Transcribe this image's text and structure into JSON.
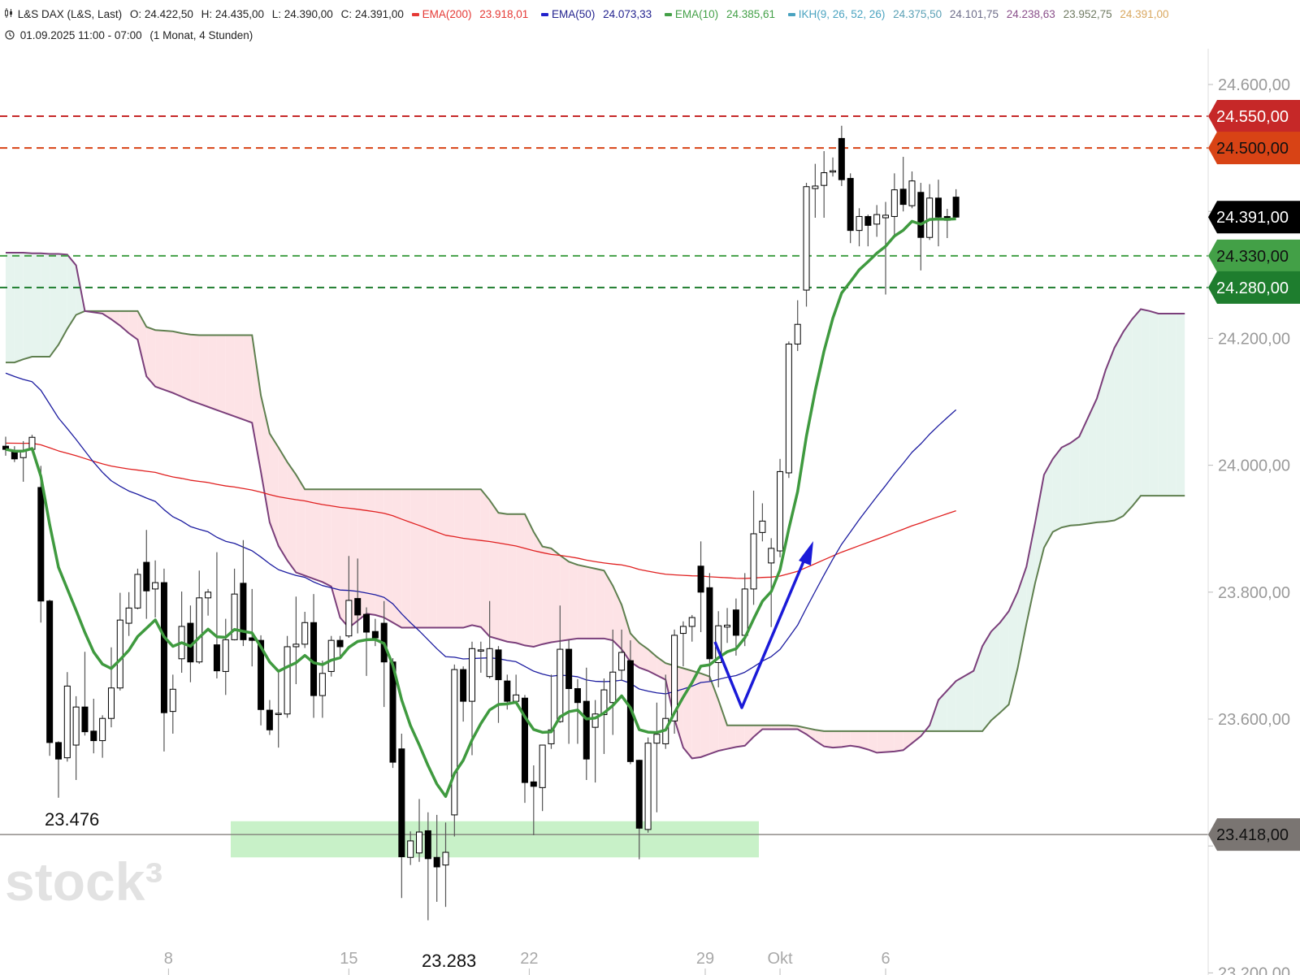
{
  "header": {
    "instrument_icon": "candlestick-icon",
    "instrument": "L&S DAX (L&S, Last)",
    "open": "O: 24.422,50",
    "high": "H: 24.435,00",
    "low": "L: 24.390,00",
    "close": "C: 24.391,00",
    "indicators": [
      {
        "name": "EMA(200)",
        "value": "23.918,01",
        "color": "#e53935"
      },
      {
        "name": "EMA(50)",
        "value": "24.073,33",
        "color": "#23238f"
      },
      {
        "name": "EMA(10)",
        "value": "24.385,61",
        "color": "#43a047"
      },
      {
        "name": "IKH(9, 26, 52, 26)",
        "color": "#4aa3c0",
        "values": [
          {
            "value": "24.375,50",
            "color": "#5aa0b5"
          },
          {
            "value": "24.101,75",
            "color": "#6e6e8a"
          },
          {
            "value": "24.238,63",
            "color": "#8a4f8a"
          },
          {
            "value": "23.952,75",
            "color": "#6f7a62"
          },
          {
            "value": "24.391,00",
            "color": "#d9a860"
          }
        ]
      }
    ],
    "clock_icon": "clock-icon",
    "range": "01.09.2025 11:00 - 07:00",
    "period": "(1 Monat, 4 Stunden)"
  },
  "watermark": "stock³",
  "chart_data": {
    "type": "candlestick",
    "title": "L&S DAX (L&S, Last)",
    "ylim": [
      23200,
      24650
    ],
    "grid": false,
    "y_ticks": [
      {
        "value": 24600,
        "label": "24.600,00"
      },
      {
        "value": 24400,
        "label": ""
      },
      {
        "value": 24200,
        "label": "24.200,00"
      },
      {
        "value": 24000,
        "label": "24.000,00"
      },
      {
        "value": 23800,
        "label": "23.800,00"
      },
      {
        "value": 23600,
        "label": "23.600,00"
      },
      {
        "value": 23400,
        "label": ""
      },
      {
        "value": 23200,
        "label": "23.200,00"
      }
    ],
    "x_ticks": [
      "8",
      "15",
      "22",
      "29",
      "Okt",
      "6"
    ],
    "candles_ohlc": [
      [
        24030,
        24045,
        24015,
        24025
      ],
      [
        24023,
        24030,
        24005,
        24010
      ],
      [
        24012,
        24038,
        23974,
        24023
      ],
      [
        24025,
        24048,
        24023,
        24044
      ],
      [
        23965,
        23999,
        23752,
        23786
      ],
      [
        23786,
        23788,
        23542,
        23563
      ],
      [
        23563,
        23565,
        23476,
        23537
      ],
      [
        23539,
        23674,
        23533,
        23652
      ],
      [
        23559,
        23636,
        23504,
        23619
      ],
      [
        23619,
        23706,
        23574,
        23580
      ],
      [
        23581,
        23632,
        23546,
        23566
      ],
      [
        23566,
        23606,
        23539,
        23601
      ],
      [
        23601,
        23713,
        23587,
        23649
      ],
      [
        23649,
        23799,
        23645,
        23756
      ],
      [
        23751,
        23800,
        23731,
        23775
      ],
      [
        23775,
        23837,
        23773,
        23828
      ],
      [
        23847,
        23898,
        23758,
        23802
      ],
      [
        23805,
        23850,
        23760,
        23815
      ],
      [
        23815,
        23837,
        23549,
        23610
      ],
      [
        23612,
        23670,
        23577,
        23647
      ],
      [
        23695,
        23801,
        23673,
        23746
      ],
      [
        23751,
        23779,
        23658,
        23690
      ],
      [
        23690,
        23834,
        23687,
        23791
      ],
      [
        23791,
        23805,
        23763,
        23800
      ],
      [
        23717,
        23863,
        23664,
        23676
      ],
      [
        23675,
        23758,
        23638,
        23725
      ],
      [
        23725,
        23837,
        23724,
        23797
      ],
      [
        23814,
        23882,
        23715,
        23725
      ],
      [
        23728,
        23805,
        23683,
        23724
      ],
      [
        23724,
        23732,
        23590,
        23615
      ],
      [
        23614,
        23630,
        23575,
        23583
      ],
      [
        23609,
        23673,
        23555,
        23609
      ],
      [
        23608,
        23731,
        23602,
        23714
      ],
      [
        23714,
        23793,
        23655,
        23718
      ],
      [
        23718,
        23769,
        23712,
        23752
      ],
      [
        23752,
        23797,
        23602,
        23637
      ],
      [
        23637,
        23692,
        23602,
        23672
      ],
      [
        23675,
        23731,
        23667,
        23724
      ],
      [
        23724,
        23731,
        23696,
        23714
      ],
      [
        23731,
        23857,
        23728,
        23787
      ],
      [
        23790,
        23853,
        23735,
        23764
      ],
      [
        23765,
        23776,
        23668,
        23737
      ],
      [
        23738,
        23758,
        23715,
        23728
      ],
      [
        23751,
        23786,
        23619,
        23690
      ],
      [
        23690,
        23696,
        23523,
        23532
      ],
      [
        23553,
        23577,
        23318,
        23383
      ],
      [
        23382,
        23423,
        23370,
        23408
      ],
      [
        23389,
        23474,
        23375,
        23422
      ],
      [
        23424,
        23453,
        23283,
        23380
      ],
      [
        23382,
        23449,
        23312,
        23367
      ],
      [
        23370,
        23437,
        23304,
        23390
      ],
      [
        23449,
        23686,
        23415,
        23678
      ],
      [
        23678,
        23683,
        23596,
        23628
      ],
      [
        23628,
        23722,
        23543,
        23711
      ],
      [
        23709,
        23722,
        23673,
        23709
      ],
      [
        23667,
        23786,
        23664,
        23711
      ],
      [
        23709,
        23715,
        23594,
        23662
      ],
      [
        23660,
        23670,
        23615,
        23628
      ],
      [
        23628,
        23670,
        23625,
        23638
      ],
      [
        23633,
        23638,
        23468,
        23500
      ],
      [
        23501,
        23527,
        23417,
        23494
      ],
      [
        23492,
        23559,
        23455,
        23559
      ],
      [
        23561,
        23670,
        23553,
        23583
      ],
      [
        23596,
        23779,
        23594,
        23710
      ],
      [
        23710,
        23725,
        23561,
        23648
      ],
      [
        23648,
        23663,
        23561,
        23626
      ],
      [
        23628,
        23681,
        23504,
        23537
      ],
      [
        23587,
        23630,
        23500,
        23608
      ],
      [
        23607,
        23664,
        23545,
        23646
      ],
      [
        23626,
        23741,
        23575,
        23674
      ],
      [
        23677,
        23741,
        23660,
        23705
      ],
      [
        23692,
        23724,
        23529,
        23533
      ],
      [
        23535,
        23536,
        23379,
        23428
      ],
      [
        23426,
        23571,
        23421,
        23562
      ],
      [
        23562,
        23626,
        23453,
        23576
      ],
      [
        23561,
        23670,
        23553,
        23601
      ],
      [
        23597,
        23741,
        23577,
        23732
      ],
      [
        23735,
        23754,
        23683,
        23746
      ],
      [
        23746,
        23764,
        23722,
        23760
      ],
      [
        23841,
        23880,
        23737,
        23800
      ],
      [
        23807,
        23830,
        23660,
        23695
      ],
      [
        23689,
        23770,
        23650,
        23747
      ],
      [
        23745,
        23775,
        23720,
        23748
      ],
      [
        23772,
        23790,
        23700,
        23732
      ],
      [
        23732,
        23830,
        23715,
        23805
      ],
      [
        23805,
        23960,
        23780,
        23892
      ],
      [
        23894,
        23940,
        23880,
        23912
      ],
      [
        23846,
        23885,
        23745,
        23869
      ],
      [
        23865,
        24010,
        23855,
        23990
      ],
      [
        23988,
        24195,
        23980,
        24191
      ],
      [
        24191,
        24260,
        24180,
        24222
      ],
      [
        24276,
        24445,
        24250,
        24439
      ],
      [
        24436,
        24475,
        24390,
        24440
      ],
      [
        24441,
        24495,
        24390,
        24461
      ],
      [
        24462,
        24485,
        24455,
        24464
      ],
      [
        24515,
        24535,
        24440,
        24450
      ],
      [
        24452,
        24460,
        24350,
        24370
      ],
      [
        24370,
        24405,
        24345,
        24392
      ],
      [
        24392,
        24395,
        24345,
        24378
      ],
      [
        24380,
        24410,
        24360,
        24395
      ],
      [
        24390,
        24415,
        24269,
        24394
      ],
      [
        24392,
        24460,
        24360,
        24434
      ],
      [
        24435,
        24486,
        24400,
        24411
      ],
      [
        24409,
        24463,
        24405,
        24448
      ],
      [
        24430,
        24445,
        24307,
        24359
      ],
      [
        24359,
        24443,
        24355,
        24421
      ],
      [
        24421,
        24450,
        24345,
        24391
      ],
      [
        24392,
        24404,
        24358,
        24386
      ],
      [
        24422.5,
        24435,
        24390,
        24391
      ]
    ],
    "ema": [
      {
        "name": "EMA(200)",
        "period": 200,
        "color": "#e02020"
      },
      {
        "name": "EMA(50)",
        "period": 50,
        "color": "#1c1ca0"
      },
      {
        "name": "EMA(10)",
        "period": 10,
        "color": "#3f9a3f"
      }
    ],
    "ichimoku": {
      "span_a_color": "#7b3f7b",
      "span_b_color": "#5f7f4f",
      "bull_fill": "#e6f4ee",
      "bear_fill": "#fde3e6",
      "span_a": [
        24335,
        24335,
        24335,
        24334,
        24334,
        24333,
        24333,
        24332,
        24315,
        24243,
        24241,
        24239,
        24230,
        24220,
        24208,
        24198,
        24140,
        24124,
        24119,
        24114,
        24108,
        24102,
        24097,
        24092,
        24087,
        24082,
        24077,
        24072,
        24067,
        23990,
        23910,
        23873,
        23850,
        23831,
        23826,
        23821,
        23816,
        23809,
        23760,
        23744,
        23755,
        23766,
        23764,
        23760,
        23752,
        23744,
        23744,
        23744,
        23744,
        23744,
        23744,
        23744,
        23744,
        23748,
        23745,
        23730,
        23726,
        23722,
        23720,
        23716,
        23714,
        23718,
        23721,
        23723,
        23725,
        23727,
        23727,
        23727,
        23727,
        23724,
        23710,
        23690,
        23681,
        23676,
        23669,
        23662,
        23600,
        23555,
        23538,
        23540,
        23545,
        23550,
        23553,
        23556,
        23558,
        23572,
        23584,
        23584,
        23584,
        23584,
        23584,
        23576,
        23566,
        23557,
        23555,
        23556,
        23558,
        23556,
        23552,
        23547,
        23548,
        23549,
        23551,
        23562,
        23573,
        23590,
        23630,
        23645,
        23660,
        23668,
        23676,
        23715,
        23738,
        23752,
        23770,
        23800,
        23840,
        23910,
        23985,
        24010,
        24028,
        24035,
        24045,
        24075,
        24105,
        24150,
        24185,
        24210,
        24230,
        24246,
        24243,
        24239,
        24239,
        24239,
        24239
      ],
      "span_b": [
        24162,
        24162,
        24167,
        24171,
        24171,
        24171,
        24190,
        24215,
        24237,
        24243,
        24243,
        24243,
        24243,
        24243,
        24243,
        24243,
        24218,
        24213,
        24212,
        24211,
        24208,
        24206,
        24205,
        24205,
        24205,
        24205,
        24205,
        24205,
        24205,
        24110,
        24050,
        24028,
        24005,
        23985,
        23962,
        23962,
        23962,
        23962,
        23962,
        23962,
        23962,
        23962,
        23962,
        23962,
        23962,
        23962,
        23962,
        23962,
        23962,
        23962,
        23962,
        23962,
        23962,
        23962,
        23962,
        23945,
        23925,
        23923,
        23923,
        23923,
        23895,
        23872,
        23869,
        23858,
        23848,
        23843,
        23840,
        23837,
        23834,
        23810,
        23780,
        23735,
        23720,
        23710,
        23698,
        23688,
        23684,
        23680,
        23676,
        23672,
        23667,
        23630,
        23590,
        23590,
        23590,
        23590,
        23590,
        23590,
        23590,
        23590,
        23589,
        23586,
        23583,
        23581,
        23581,
        23581,
        23581,
        23581,
        23581,
        23581,
        23581,
        23581,
        23581,
        23581,
        23581,
        23581,
        23581,
        23581,
        23581,
        23581,
        23581,
        23581,
        23598,
        23610,
        23623,
        23680,
        23750,
        23815,
        23870,
        23895,
        23902,
        23905,
        23906,
        23908,
        23910,
        23911,
        23913,
        23920,
        23935,
        23952,
        23952,
        23952,
        23952,
        23952,
        23952
      ]
    },
    "horizontal_lines": [
      {
        "value": 24550,
        "label": "24.550,00",
        "color": "#c62828",
        "style": "dashed"
      },
      {
        "value": 24500,
        "label": "24.500,00",
        "color": "#d84315",
        "style": "dashed"
      },
      {
        "value": 24330,
        "label": "24.330,00",
        "color": "#43a047",
        "style": "dashed"
      },
      {
        "value": 24280,
        "label": "24.280,00",
        "color": "#1e7d2e",
        "style": "dashed"
      },
      {
        "value": 23418,
        "label": "23.418,00",
        "color": "#7a7572",
        "style": "solid"
      }
    ],
    "last_price": {
      "value": 24391,
      "label": "24.391,00",
      "color": "#000000"
    },
    "support_zone": {
      "low": 23382,
      "high": 23439,
      "color": "#c5f0c5"
    },
    "annotations": [
      "23.476",
      "23.283"
    ],
    "arrow_color": "#1a1ad8"
  }
}
